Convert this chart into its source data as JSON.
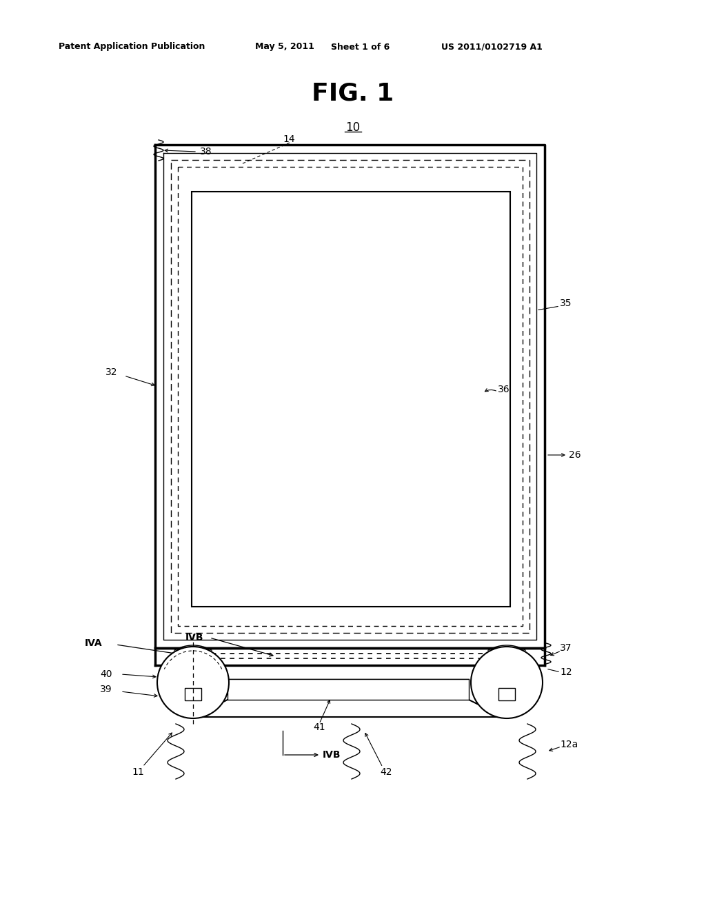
{
  "title_header": "Patent Application Publication",
  "date_header": "May 5, 2011",
  "sheet_header": "Sheet 1 of 6",
  "patent_header": "US 2011/0102719 A1",
  "fig_title": "FIG. 1",
  "fig_label": "10",
  "background_color": "#ffffff",
  "line_color": "#000000"
}
